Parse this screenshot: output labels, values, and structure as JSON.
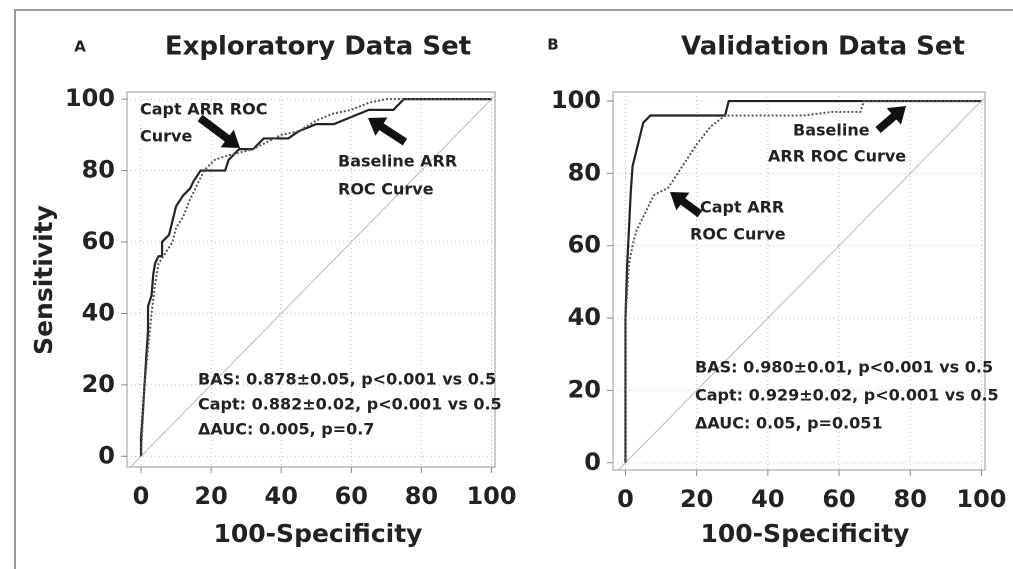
{
  "chart_data": [
    {
      "type": "line",
      "panel": "A",
      "title": "Exploratory Data Set",
      "xlabel": "100-Specificity",
      "ylabel": "Sensitivity",
      "xlim": [
        -4,
        101
      ],
      "ylim": [
        -3,
        102
      ],
      "xticks": [
        0,
        20,
        40,
        60,
        80,
        100
      ],
      "yticks": [
        0,
        20,
        40,
        60,
        80,
        100
      ],
      "grid": true,
      "diagonal": true,
      "series": [
        {
          "color": "#222222",
          "style": "solid",
          "x": [
            0,
            0,
            0.5,
            1,
            1.5,
            2,
            2,
            3,
            3.5,
            4,
            5,
            6,
            6,
            8,
            9,
            10,
            12,
            14,
            15,
            17,
            20,
            24,
            25,
            28,
            32,
            35,
            42,
            45,
            50,
            55,
            60,
            65,
            72,
            75,
            100
          ],
          "values": [
            0,
            5,
            12,
            20,
            28,
            35,
            42,
            45,
            51,
            54,
            56,
            56,
            60,
            62,
            66,
            70,
            73,
            75,
            77,
            80,
            80,
            80,
            83,
            86,
            86,
            89,
            89,
            91,
            93,
            93,
            95,
            97,
            97,
            100,
            100
          ]
        },
        {
          "color": "#555555",
          "style": "dotted",
          "x": [
            0,
            0.5,
            1,
            2,
            3,
            4,
            5,
            7,
            9,
            10,
            12,
            14,
            16,
            18,
            21,
            24,
            28,
            32,
            36,
            40,
            45,
            50,
            55,
            60,
            65,
            70,
            100
          ],
          "values": [
            0,
            10,
            20,
            30,
            40,
            48,
            54,
            57,
            60,
            64,
            67,
            72,
            76,
            80,
            83,
            84,
            85,
            86,
            88,
            90,
            91,
            94,
            96,
            97,
            99,
            100,
            100
          ]
        }
      ],
      "annotations": [
        [
          "Capt ARR ROC",
          "Curve"
        ],
        [
          "Baseline ARR",
          "ROC Curve"
        ]
      ],
      "stats": [
        "BAS: 0.878±0.05, p<0.001 vs 0.5",
        "Capt: 0.882±0.02, p<0.001 vs 0.5",
        "ΔAUC: 0.005, p=0.7"
      ]
    },
    {
      "type": "line",
      "panel": "B",
      "title": "Validation Data Set",
      "xlabel": "100-Specificity",
      "xlim": [
        -3.5,
        101
      ],
      "ylim": [
        -2,
        102.5
      ],
      "xticks": [
        0,
        20,
        40,
        60,
        80,
        100
      ],
      "yticks": [
        0,
        20,
        40,
        60,
        80,
        100
      ],
      "grid": true,
      "diagonal": true,
      "series": [
        {
          "color": "#222222",
          "style": "solid",
          "x": [
            0,
            0,
            0.5,
            1,
            1.5,
            2,
            3,
            4,
            5,
            7,
            10,
            28,
            29,
            100
          ],
          "values": [
            0,
            40,
            55,
            65,
            75,
            82,
            86,
            90,
            94,
            96,
            96,
            96,
            100,
            100
          ]
        },
        {
          "color": "#555555",
          "style": "dotted",
          "x": [
            0,
            0,
            1,
            2,
            3,
            5,
            8,
            12,
            14,
            16,
            18,
            20,
            24,
            28,
            40,
            50,
            58,
            66,
            67,
            100
          ],
          "values": [
            0,
            40,
            55,
            60,
            64,
            68,
            74,
            76,
            79,
            82,
            85,
            88,
            93,
            96,
            96,
            96,
            97,
            97,
            100,
            100
          ]
        }
      ],
      "annotations": [
        [
          "Baseline",
          "ARR ROC Curve"
        ],
        [
          "Capt ARR",
          "ROC Curve"
        ]
      ],
      "stats": [
        "BAS: 0.980±0.01, p<0.001 vs 0.5",
        "Capt: 0.929±0.02, p<0.001 vs 0.5",
        "ΔAUC: 0.05, p=0.051"
      ]
    }
  ]
}
